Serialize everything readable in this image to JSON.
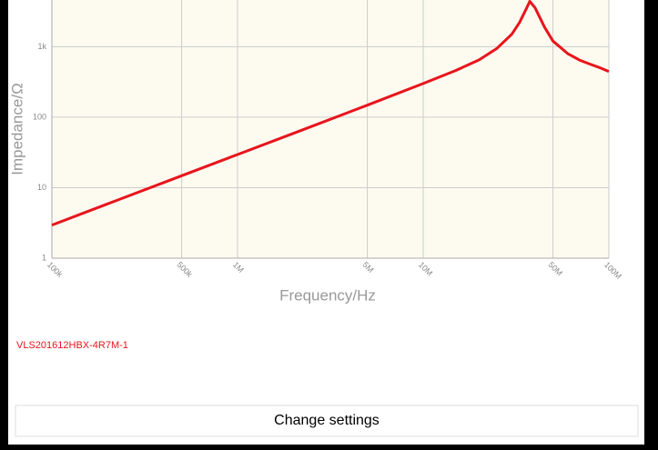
{
  "chart_data": {
    "type": "line",
    "xlabel": "Frequency/Hz",
    "ylabel": "Impedance/Ω",
    "x": [
      100000,
      200000,
      500000,
      1000000,
      2000000,
      5000000,
      10000000,
      15000000,
      20000000,
      25000000,
      30000000,
      33000000,
      36000000,
      37500000,
      40000000,
      45000000,
      50000000,
      60000000,
      70000000,
      80000000,
      90000000,
      100000000
    ],
    "series": [
      {
        "name": "VLS201612HBX-4R7M-1",
        "color": "#e8141c",
        "values": [
          2.95,
          5.9,
          14.8,
          29.5,
          59,
          148,
          300,
          460,
          650,
          950,
          1500,
          2200,
          3500,
          4400,
          3600,
          1900,
          1200,
          800,
          640,
          560,
          500,
          446
        ]
      }
    ],
    "xlim": [
      100000,
      100000000
    ],
    "ylim": [
      1,
      4600
    ],
    "xlog": true,
    "ylog": true,
    "xticks": [
      {
        "value": 100000,
        "label": "100k"
      },
      {
        "value": 500000,
        "label": "500k"
      },
      {
        "value": 1000000,
        "label": "1M"
      },
      {
        "value": 5000000,
        "label": "5M"
      },
      {
        "value": 10000000,
        "label": "10M"
      },
      {
        "value": 50000000,
        "label": "50M"
      },
      {
        "value": 100000000,
        "label": "100M"
      }
    ],
    "yticks": [
      1,
      10,
      100,
      {
        "value": 1000,
        "label": "1k"
      }
    ],
    "grid": true
  },
  "ui": {
    "button": "Change settings"
  }
}
